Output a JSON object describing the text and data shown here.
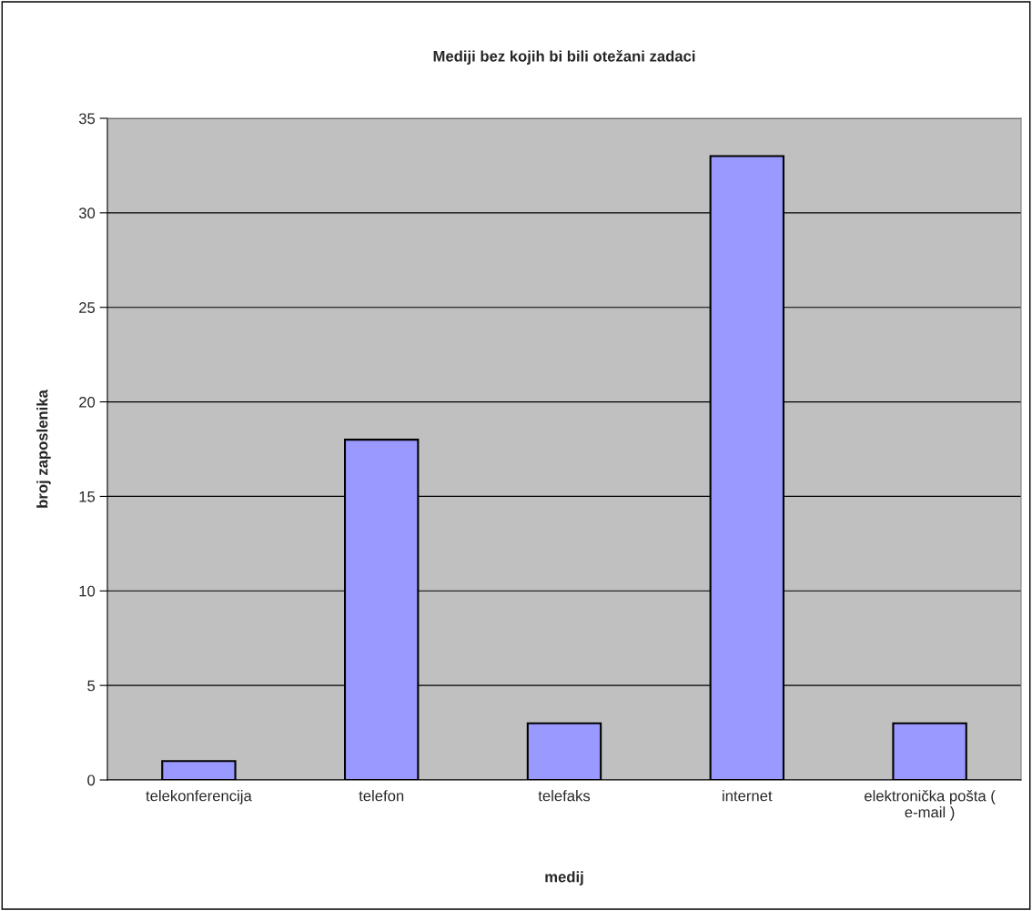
{
  "chart_data": {
    "type": "bar",
    "title": "Mediji bez kojih bi bili otežani zadaci",
    "xlabel": "medij",
    "ylabel": "broj zaposlenika",
    "categories": [
      "telekonferencija",
      "telefon",
      "telefaks",
      "internet",
      "elektronička pošta (\ne-mail )"
    ],
    "values": [
      1,
      18,
      3,
      33,
      3
    ],
    "color": "#9999ff",
    "ylim": [
      0,
      35
    ],
    "yticks": [
      0,
      5,
      10,
      15,
      20,
      25,
      30,
      35
    ],
    "grid": "y",
    "legend": false
  }
}
